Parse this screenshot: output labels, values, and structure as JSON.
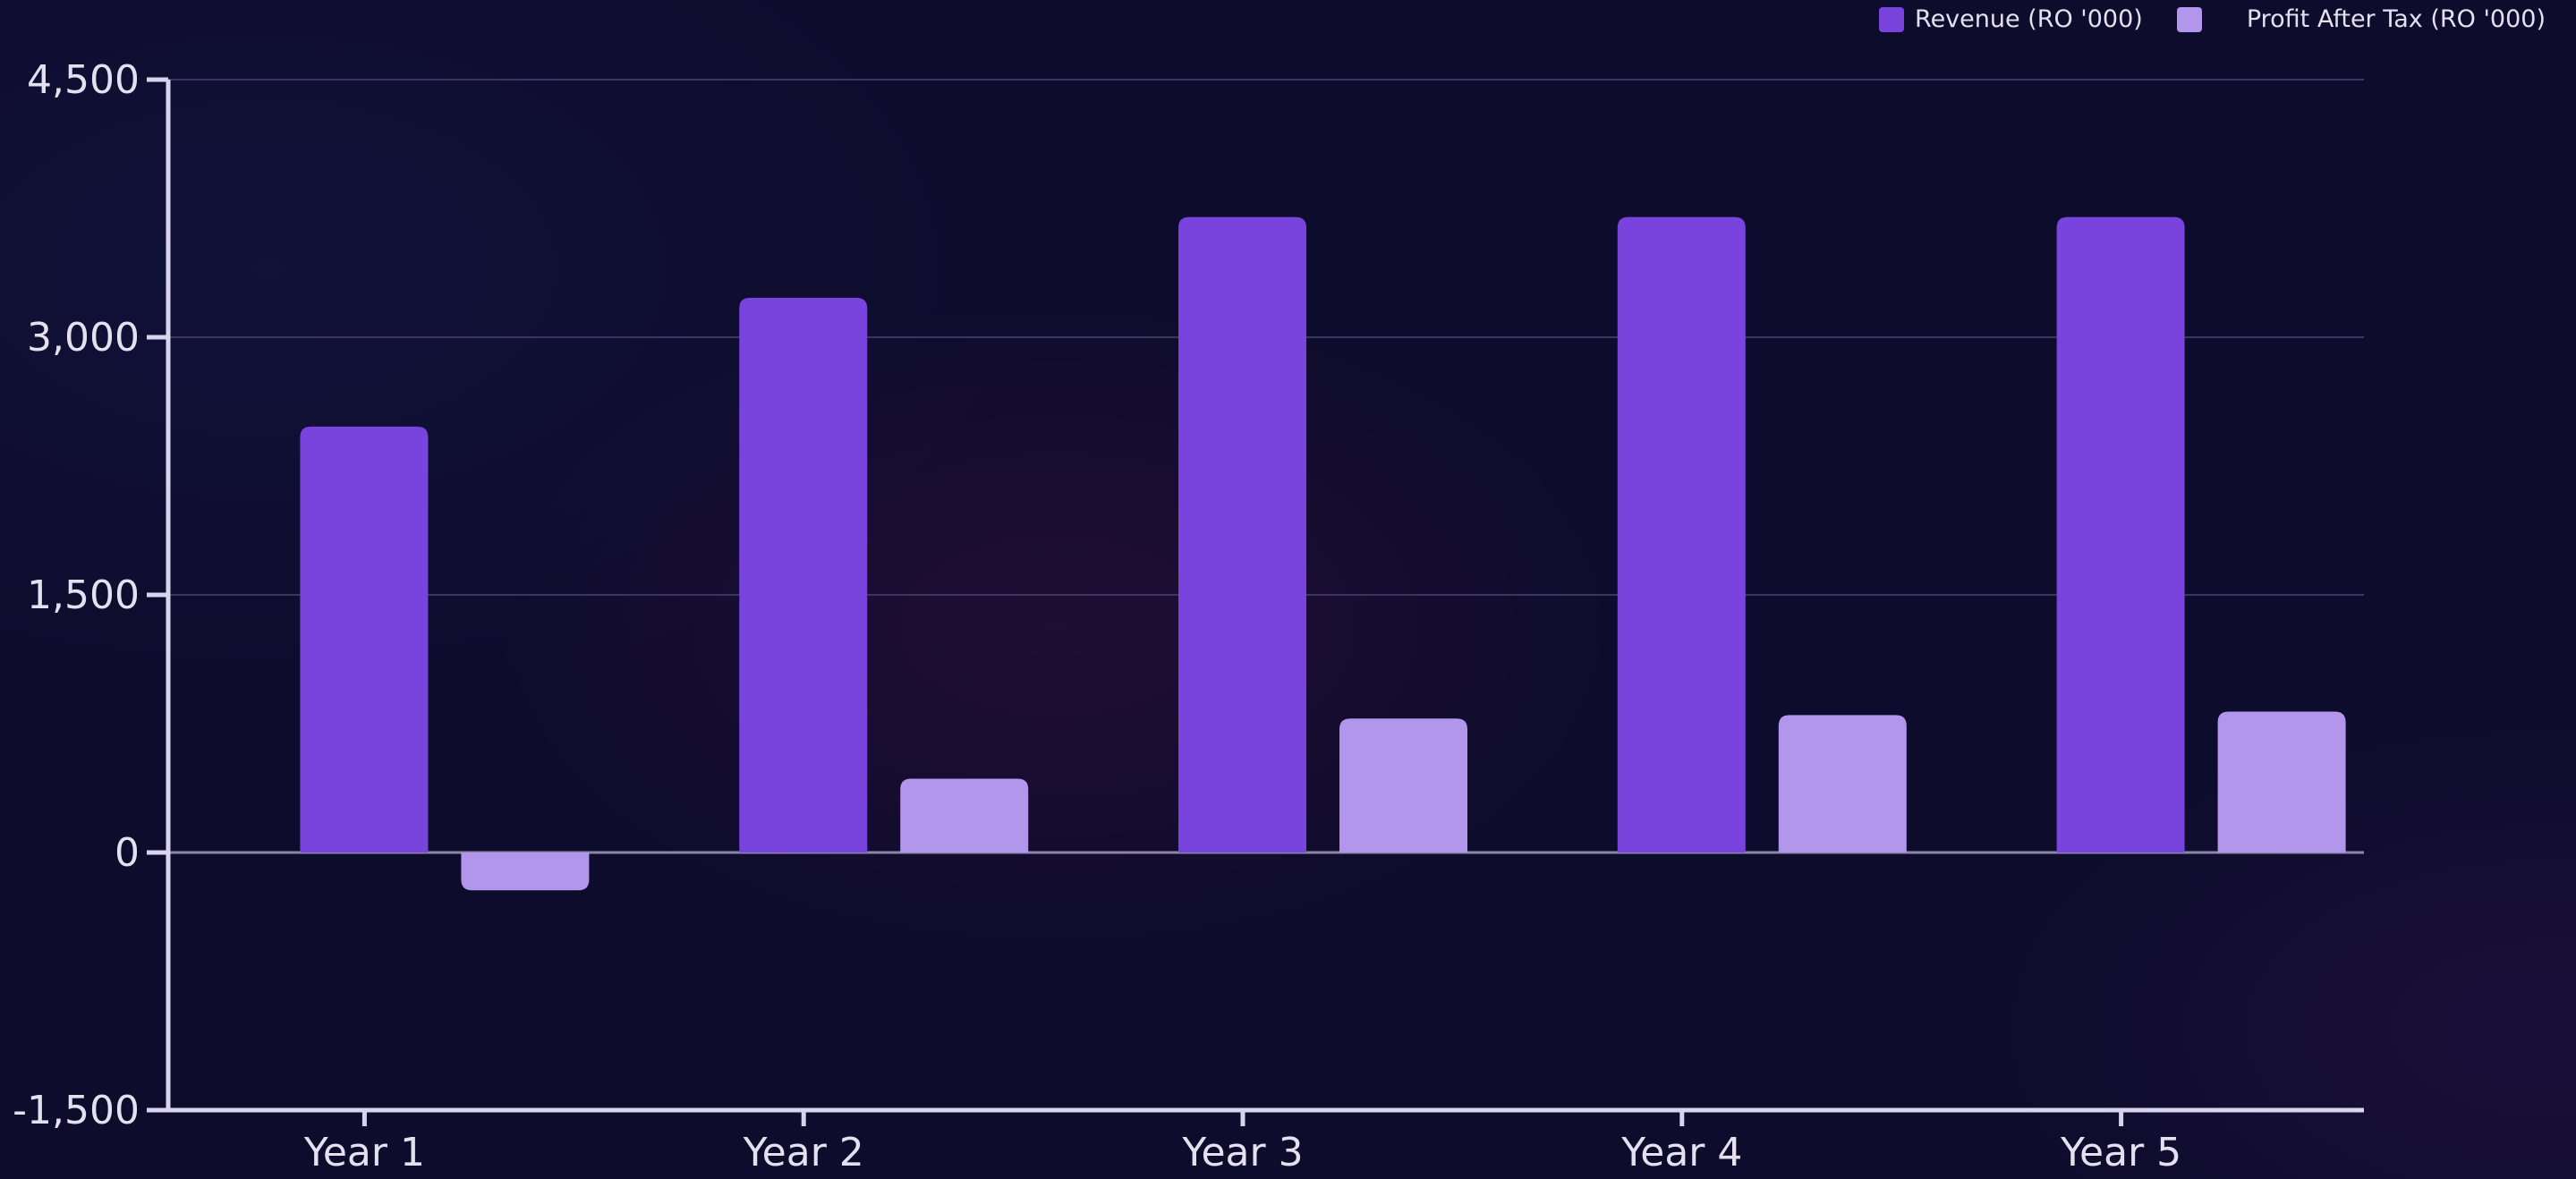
{
  "chart_data": {
    "type": "bar",
    "title": "",
    "xlabel": "",
    "ylabel": "",
    "categories": [
      "Year 1",
      "Year 2",
      "Year 3",
      "Year 4",
      "Year 5"
    ],
    "series": [
      {
        "name": "Revenue (RO '000)",
        "values": [
          2480,
          3230,
          3700,
          3700,
          3700
        ],
        "color": "#7944dd"
      },
      {
        "name": "Profit After Tax (RO '000)",
        "values": [
          -220,
          430,
          780,
          800,
          820
        ],
        "color": "#b196ec"
      }
    ],
    "ylim": [
      -1500,
      4500
    ],
    "yticks": [
      -1500,
      0,
      1500,
      3000,
      4500
    ],
    "ytick_labels": [
      "-1,500",
      "0",
      "1,500",
      "3,000",
      "4,500"
    ],
    "grid": true,
    "legend_position": "top-right"
  },
  "colors": {
    "background": "#0e0c2c",
    "axis": "#d9d4ee",
    "grid": "#3a3660",
    "zero_line": "#8a86a8",
    "text": "#e4e0f0"
  }
}
